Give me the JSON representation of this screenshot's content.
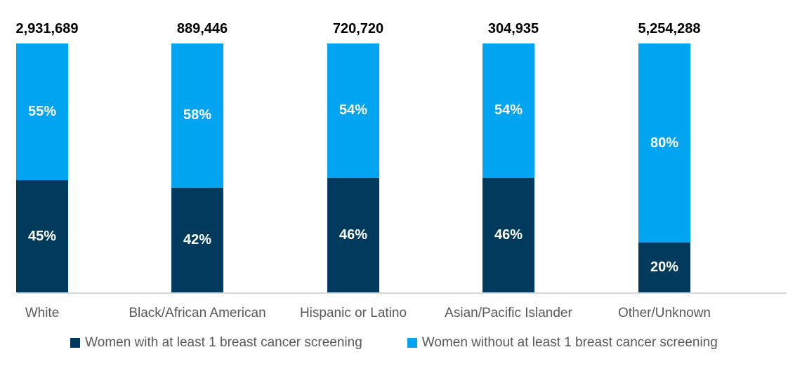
{
  "chart_data": {
    "type": "bar",
    "subtype": "stacked-100-percent",
    "orientation": "vertical",
    "categories": [
      "White",
      "Black/African American",
      "Hispanic or Latino",
      "Asian/Pacific Islander",
      "Other/Unknown"
    ],
    "bar_total_labels": [
      "2,931,689",
      "889,446",
      "720,720",
      "304,935",
      "5,254,288"
    ],
    "series": [
      {
        "name": "Women with at least 1 breast cancer screening",
        "color": "#003A5C",
        "position": "bottom",
        "values": [
          45,
          42,
          46,
          46,
          20
        ],
        "value_labels": [
          "45%",
          "42%",
          "46%",
          "46%",
          "20%"
        ]
      },
      {
        "name": "Women without at least 1 breast cancer screening",
        "color": "#00A4F0",
        "position": "top",
        "values": [
          55,
          58,
          54,
          54,
          80
        ],
        "value_labels": [
          "55%",
          "58%",
          "54%",
          "54%",
          "80%"
        ]
      }
    ],
    "title": "",
    "xlabel": "",
    "ylabel": "",
    "ylim": [
      0,
      100
    ],
    "grid": false,
    "value_label_color": "#ffffff",
    "axis_line_color": "#D9D9D9",
    "axis_label_color": "#595959",
    "legend_position": "bottom"
  },
  "legend": {
    "items": [
      {
        "label": "Women with at least 1 breast cancer screening",
        "color": "#003A5C"
      },
      {
        "label": "Women without at least 1 breast cancer screening",
        "color": "#00A4F0"
      }
    ]
  }
}
